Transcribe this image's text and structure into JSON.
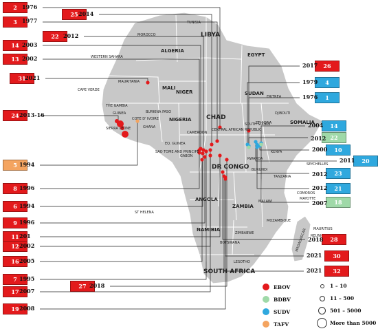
{
  "colors": {
    "EBOV": "#e31a1c",
    "BDBV": "#9fd9a8",
    "SUDV": "#2fa8de",
    "TAFV": "#f4a460",
    "land": "#c8c8c8",
    "border": "#ffffff",
    "leader": "#222222"
  },
  "outbreaks": [
    {
      "id": "2",
      "year": "1976",
      "virus": "EBOV"
    },
    {
      "id": "25",
      "year": "2014",
      "virus": "EBOV"
    },
    {
      "id": "3",
      "year": "1977",
      "virus": "EBOV"
    },
    {
      "id": "22",
      "year": "2012",
      "virus": "EBOV"
    },
    {
      "id": "14",
      "year": "2003",
      "virus": "EBOV"
    },
    {
      "id": "13",
      "year": "2002",
      "virus": "EBOV"
    },
    {
      "id": "31",
      "year": "2021",
      "virus": "EBOV"
    },
    {
      "id": "24",
      "year": "2013-16",
      "virus": "EBOV"
    },
    {
      "id": "5",
      "year": "1994",
      "virus": "TAFV"
    },
    {
      "id": "8",
      "year": "1996",
      "virus": "EBOV"
    },
    {
      "id": "6",
      "year": "1994",
      "virus": "EBOV"
    },
    {
      "id": "9",
      "year": "1996",
      "virus": "EBOV"
    },
    {
      "id": "11",
      "year": "201",
      "virus": "EBOV"
    },
    {
      "id": "12",
      "year": "2002",
      "virus": "EBOV"
    },
    {
      "id": "16",
      "year": "2005",
      "virus": "EBOV"
    },
    {
      "id": "7",
      "year": "1995",
      "virus": "EBOV"
    },
    {
      "id": "27",
      "year": "2018",
      "virus": "EBOV"
    },
    {
      "id": "17",
      "year": "2007",
      "virus": "EBOV"
    },
    {
      "id": "19",
      "year": "2008",
      "virus": "EBOV"
    },
    {
      "id": "26",
      "year": "2017",
      "virus": "EBOV"
    },
    {
      "id": "4",
      "year": "1979",
      "virus": "SUDV"
    },
    {
      "id": "1",
      "year": "1976",
      "virus": "SUDV"
    },
    {
      "id": "14",
      "year": "2004",
      "virus": "SUDV"
    },
    {
      "id": "22",
      "year": "2012",
      "virus": "BDBV"
    },
    {
      "id": "10",
      "year": "2000",
      "virus": "SUDV"
    },
    {
      "id": "20",
      "year": "2011",
      "virus": "SUDV"
    },
    {
      "id": "23",
      "year": "2012",
      "virus": "SUDV"
    },
    {
      "id": "21",
      "year": "2012",
      "virus": "SUDV"
    },
    {
      "id": "18",
      "year": "2007",
      "virus": "BDBV"
    },
    {
      "id": "28",
      "year": "2018",
      "virus": "EBOV"
    },
    {
      "id": "30",
      "year": "2021",
      "virus": "EBOV"
    },
    {
      "id": "32",
      "year": "2021",
      "virus": "EBOV"
    }
  ],
  "countries": [
    "TUNISIA",
    "MOROCCO",
    "ALGERIA",
    "LIBYA",
    "EGYPT",
    "WESTERN SAHARA",
    "MAURITANIA",
    "MALI",
    "NIGER",
    "CHAD",
    "SUDAN",
    "ERITREA",
    "DJIBOUTI",
    "SOMALIA",
    "ETHIOPIA",
    "SOUTH SUDAN",
    "CAPE VERDE",
    "THE GAMBIA",
    "GUINEA",
    "SIERRA LEONE",
    "COTE D' IVOIRE",
    "BURKINA FASO",
    "GHANA",
    "NIGERIA",
    "CAMEROON",
    "CENTRAL AFRICAN REPUBLIC",
    "EQ. GUINEA",
    "SAO TOME AND PRINCIPE",
    "GABON",
    "DR CONGO",
    "RWANDA",
    "BURUNDI",
    "KENYA",
    "TANZANIA",
    "SEYCHELLES",
    "COMOROS",
    "MAYOTTE",
    "MALAWI",
    "MOZAMBIQUE",
    "ZAMBIA",
    "ANGOLA",
    "ST HELENA",
    "NAMIBIA",
    "BOTSWANA",
    "ZIMBABWE",
    "MADAGASCAR",
    "MAURITIUS",
    "REUNION",
    "LESOTHO",
    "SOUTH AFRICA"
  ],
  "legend": {
    "viruses": [
      "EBOV",
      "BDBV",
      "SUDV",
      "TAFV"
    ],
    "sizes": [
      "1 – 10",
      "11 – 500",
      "501 – 5000",
      "More than 5000"
    ]
  }
}
